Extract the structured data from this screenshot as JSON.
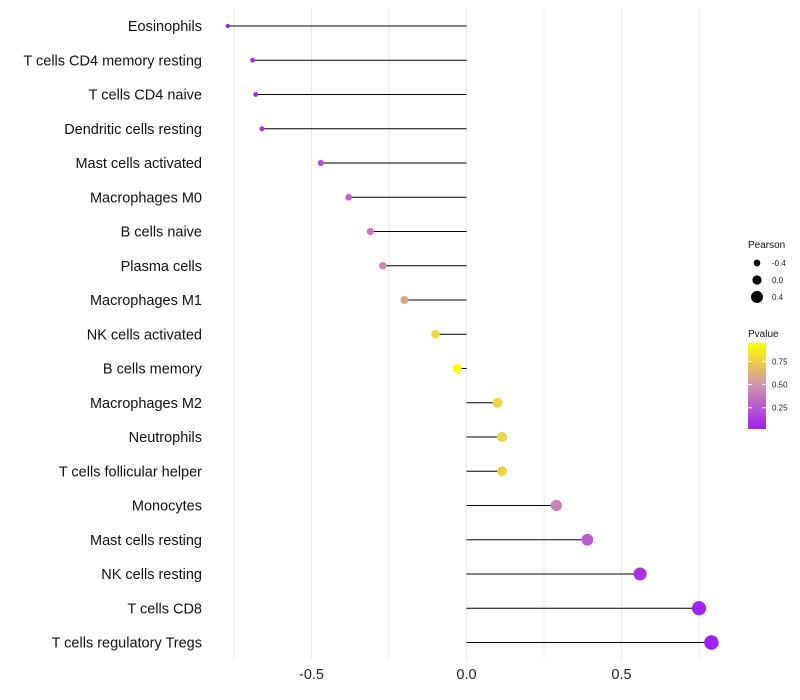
{
  "chart_data": {
    "type": "lollipop",
    "title": "",
    "xlabel": "",
    "ylabel": "",
    "xlim": [
      -0.8,
      0.8
    ],
    "xticks": [
      -0.5,
      0.0,
      0.5
    ],
    "xtick_labels": [
      "-0.5",
      "0.0",
      "0.5"
    ],
    "grid": "vertical",
    "points": [
      {
        "category": "Eosinophils",
        "pearson": -0.77,
        "pvalue": 0.02
      },
      {
        "category": "T cells CD4 memory resting",
        "pearson": -0.69,
        "pvalue": 0.05
      },
      {
        "category": "T cells CD4 naive",
        "pearson": -0.68,
        "pvalue": 0.06
      },
      {
        "category": "Dendritic cells resting",
        "pearson": -0.66,
        "pvalue": 0.08
      },
      {
        "category": "Mast cells activated",
        "pearson": -0.47,
        "pvalue": 0.2
      },
      {
        "category": "Macrophages M0",
        "pearson": -0.38,
        "pvalue": 0.3
      },
      {
        "category": "B cells naive",
        "pearson": -0.31,
        "pvalue": 0.38
      },
      {
        "category": "Plasma cells",
        "pearson": -0.27,
        "pvalue": 0.45
      },
      {
        "category": "Macrophages M1",
        "pearson": -0.2,
        "pvalue": 0.58
      },
      {
        "category": "NK cells activated",
        "pearson": -0.1,
        "pvalue": 0.8
      },
      {
        "category": "B cells memory",
        "pearson": -0.03,
        "pvalue": 0.95
      },
      {
        "category": "Macrophages M2",
        "pearson": 0.1,
        "pvalue": 0.78
      },
      {
        "category": "Neutrophils",
        "pearson": 0.115,
        "pvalue": 0.76
      },
      {
        "category": "T cells follicular helper",
        "pearson": 0.115,
        "pvalue": 0.76
      },
      {
        "category": "Monocytes",
        "pearson": 0.29,
        "pvalue": 0.42
      },
      {
        "category": "Mast cells resting",
        "pearson": 0.39,
        "pvalue": 0.27
      },
      {
        "category": "NK cells resting",
        "pearson": 0.56,
        "pvalue": 0.1
      },
      {
        "category": "T cells CD8",
        "pearson": 0.75,
        "pvalue": 0.03
      },
      {
        "category": "T cells regulatory  Tregs",
        "pearson": 0.79,
        "pvalue": 0.02
      }
    ],
    "size_legend": {
      "title": "Pearson",
      "values": [
        -0.4,
        0.0,
        0.4
      ],
      "labels": [
        "-0.4",
        "0.0",
        "0.4"
      ]
    },
    "color_legend": {
      "title": "Pvalue",
      "range": [
        0.02,
        0.95
      ],
      "ticks": [
        0.25,
        0.5,
        0.75
      ],
      "labels": [
        "0.25",
        "0.50",
        "0.75"
      ],
      "low_color": "#a020f0",
      "mid_color": "#d090b0",
      "high_color": "#ffff00"
    },
    "colors": {
      "stem": "#000000",
      "grid": "#ebebeb"
    }
  }
}
